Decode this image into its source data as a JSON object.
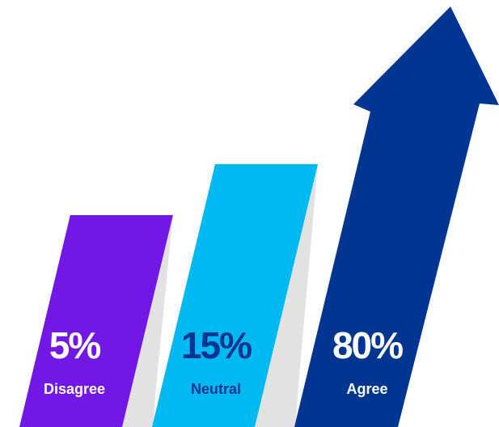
{
  "chart_data": {
    "type": "bar",
    "categories": [
      "Disagree",
      "Neutral",
      "Agree"
    ],
    "values": [
      5,
      15,
      80
    ],
    "value_labels": [
      "5%",
      "15%",
      "80%"
    ],
    "colors": [
      "#7117E6",
      "#00B8F2",
      "#003591"
    ],
    "label_colors": [
      "#FFFFFF",
      "#003591",
      "#FFFFFF"
    ],
    "connector_color": "#E2E2E2",
    "style": "ribbon bars with final arrow"
  }
}
